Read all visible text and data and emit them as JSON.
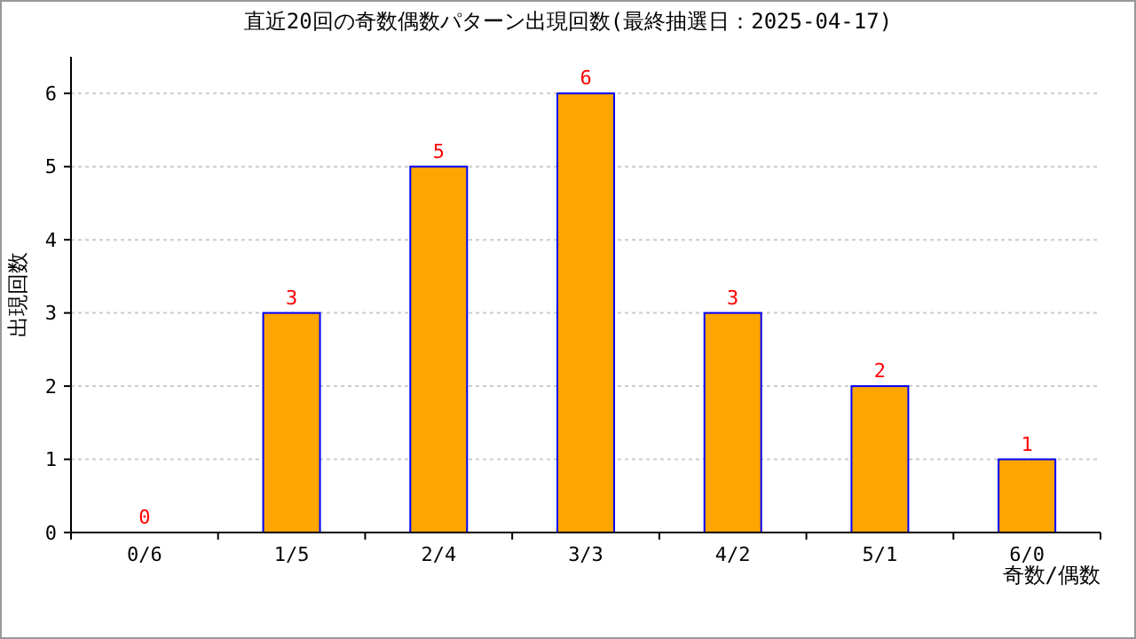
{
  "chart_data": {
    "type": "bar",
    "title": "直近20回の奇数偶数パターン出現回数(最終抽選日：2025-04-17)",
    "xlabel": "奇数/偶数",
    "ylabel": "出現回数",
    "categories": [
      "0/6",
      "1/5",
      "2/4",
      "3/3",
      "4/2",
      "5/1",
      "6/0"
    ],
    "series": [
      {
        "color": "#ffa500",
        "values": [
          0,
          3,
          5,
          6,
          3,
          2,
          1
        ]
      }
    ],
    "ylim": [
      0,
      6.5
    ],
    "yticks": [
      0,
      1,
      2,
      3,
      4,
      5,
      6
    ],
    "grid": "y",
    "data_labels": true
  }
}
